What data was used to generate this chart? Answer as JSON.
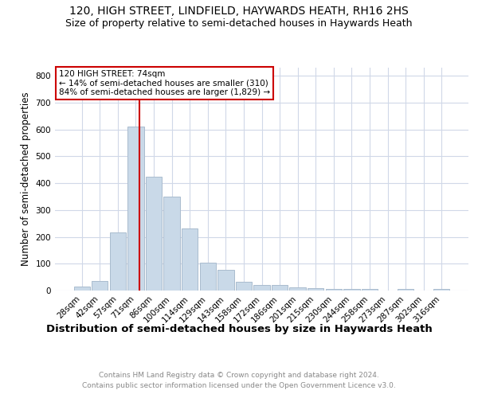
{
  "title1": "120, HIGH STREET, LINDFIELD, HAYWARDS HEATH, RH16 2HS",
  "title2": "Size of property relative to semi-detached houses in Haywards Heath",
  "xlabel": "Distribution of semi-detached houses by size in Haywards Heath",
  "ylabel": "Number of semi-detached properties",
  "footer": "Contains HM Land Registry data © Crown copyright and database right 2024.\nContains public sector information licensed under the Open Government Licence v3.0.",
  "categories": [
    "28sqm",
    "42sqm",
    "57sqm",
    "71sqm",
    "86sqm",
    "100sqm",
    "114sqm",
    "129sqm",
    "143sqm",
    "158sqm",
    "172sqm",
    "186sqm",
    "201sqm",
    "215sqm",
    "230sqm",
    "244sqm",
    "258sqm",
    "273sqm",
    "287sqm",
    "302sqm",
    "316sqm"
  ],
  "values": [
    15,
    35,
    215,
    610,
    425,
    350,
    232,
    105,
    78,
    32,
    22,
    22,
    12,
    9,
    5,
    5,
    7,
    0,
    7,
    0,
    5
  ],
  "bar_color": "#c9d9e8",
  "bar_edge_color": "#aabcce",
  "annotation_box_text": "120 HIGH STREET: 74sqm\n← 14% of semi-detached houses are smaller (310)\n84% of semi-detached houses are larger (1,829) →",
  "annotation_box_color": "#ffffff",
  "annotation_box_edge_color": "#cc0000",
  "red_line_color": "#cc0000",
  "ylim": [
    0,
    830
  ],
  "yticks": [
    0,
    100,
    200,
    300,
    400,
    500,
    600,
    700,
    800
  ],
  "title1_fontsize": 10,
  "title2_fontsize": 9,
  "xlabel_fontsize": 9.5,
  "ylabel_fontsize": 8.5,
  "tick_fontsize": 7.5,
  "ann_fontsize": 7.5,
  "footer_fontsize": 6.5,
  "background_color": "#ffffff",
  "grid_color": "#d0d8e8"
}
